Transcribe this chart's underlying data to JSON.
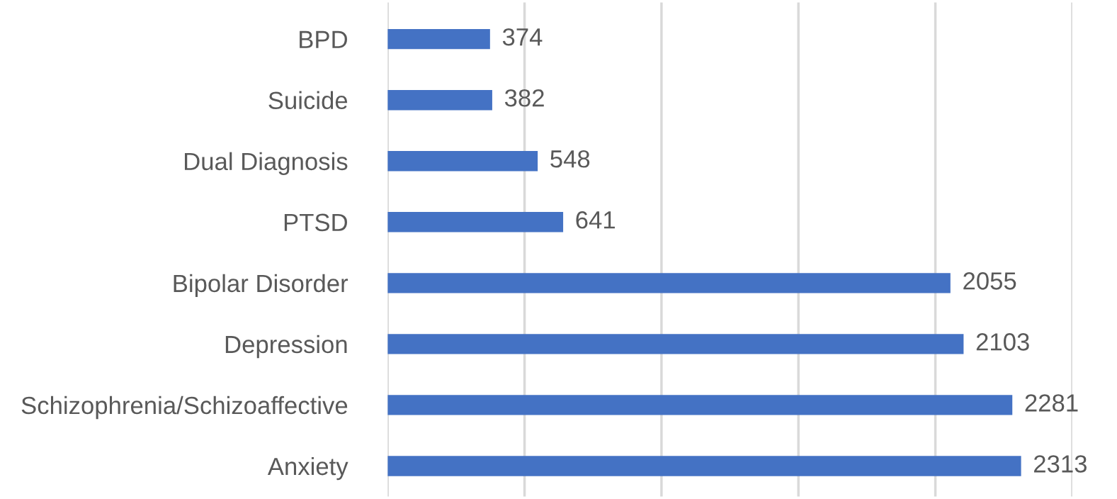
{
  "chart_data": {
    "type": "bar",
    "orientation": "horizontal",
    "categories": [
      "BPD",
      "Suicide",
      "Dual Diagnosis",
      "PTSD",
      "Bipolar Disorder",
      "Depression",
      "Schizophrenia/Schizoaffective",
      "Anxiety"
    ],
    "values": [
      374,
      382,
      548,
      641,
      2055,
      2103,
      2281,
      2313
    ],
    "color": "#4472c4",
    "xlim": [
      0,
      2500
    ],
    "xticks": [
      {
        "value": 0,
        "label": null
      },
      {
        "value": 500,
        "label": null
      },
      {
        "value": 1000,
        "label": null
      },
      {
        "value": 1500,
        "label": null
      },
      {
        "value": 2000,
        "label": null
      },
      {
        "value": 2500,
        "label": null
      }
    ],
    "tick_labels": "y",
    "grid": "x",
    "data_labels": true
  }
}
